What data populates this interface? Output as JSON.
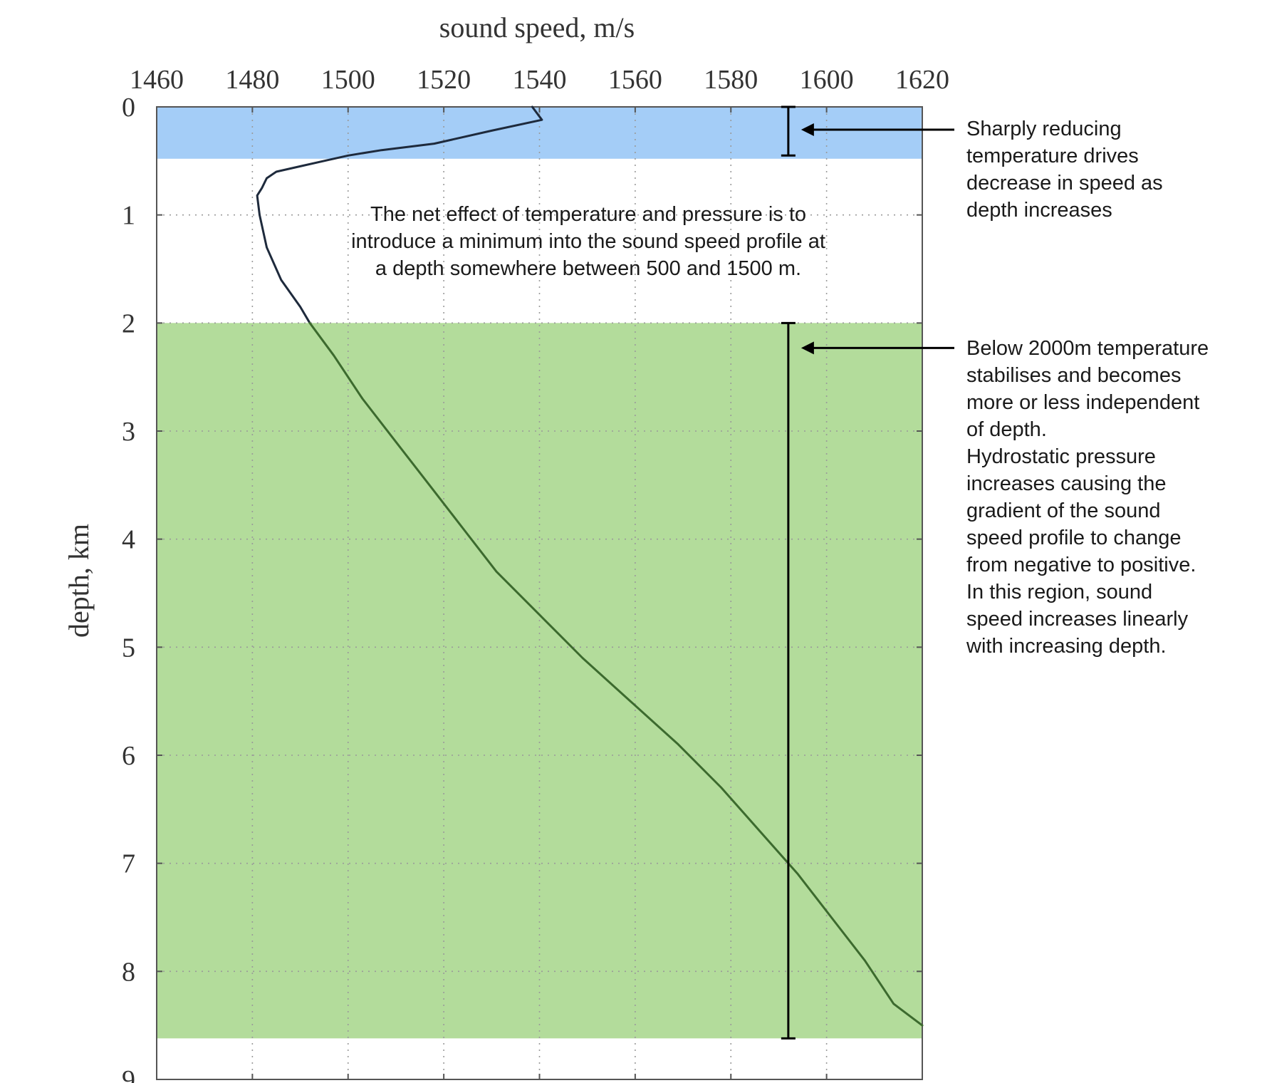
{
  "chart_data": {
    "type": "line",
    "title": "",
    "xlabel": "sound speed, m/s",
    "ylabel": "depth, km",
    "xaxis_position": "top",
    "yaxis_inverted": true,
    "xlim": [
      1460,
      1620
    ],
    "ylim": [
      0,
      9
    ],
    "xticks": [
      1460,
      1480,
      1500,
      1520,
      1540,
      1560,
      1580,
      1600,
      1620
    ],
    "yticks": [
      0,
      1,
      2,
      3,
      4,
      5,
      6,
      7,
      8,
      9
    ],
    "grid": "dotted",
    "regions": [
      {
        "name": "surface",
        "depth_range": [
          0,
          0.48
        ],
        "color": "#a4cdf7"
      },
      {
        "name": "deep",
        "depth_range": [
          2,
          8.62
        ],
        "color": "#b3dc9b"
      }
    ],
    "series": [
      {
        "color_above_2km": "#1e2a3c",
        "color_below_2km": "#3c6a2e",
        "points": [
          {
            "speed": 1538.5,
            "depth": 0.0
          },
          {
            "speed": 1540.5,
            "depth": 0.12
          },
          {
            "speed": 1530,
            "depth": 0.22
          },
          {
            "speed": 1518,
            "depth": 0.34
          },
          {
            "speed": 1507,
            "depth": 0.4
          },
          {
            "speed": 1500,
            "depth": 0.45
          },
          {
            "speed": 1495,
            "depth": 0.5
          },
          {
            "speed": 1490,
            "depth": 0.55
          },
          {
            "speed": 1485,
            "depth": 0.6
          },
          {
            "speed": 1483,
            "depth": 0.66
          },
          {
            "speed": 1482,
            "depth": 0.75
          },
          {
            "speed": 1481,
            "depth": 0.82
          },
          {
            "speed": 1481.5,
            "depth": 1.0
          },
          {
            "speed": 1483,
            "depth": 1.3
          },
          {
            "speed": 1486,
            "depth": 1.6
          },
          {
            "speed": 1490,
            "depth": 1.85
          },
          {
            "speed": 1492,
            "depth": 2.0
          },
          {
            "speed": 1497,
            "depth": 2.3
          },
          {
            "speed": 1503,
            "depth": 2.7
          },
          {
            "speed": 1510,
            "depth": 3.1
          },
          {
            "speed": 1517,
            "depth": 3.5
          },
          {
            "speed": 1524,
            "depth": 3.9
          },
          {
            "speed": 1531,
            "depth": 4.3
          },
          {
            "speed": 1540,
            "depth": 4.7
          },
          {
            "speed": 1549,
            "depth": 5.1
          },
          {
            "speed": 1559,
            "depth": 5.5
          },
          {
            "speed": 1569,
            "depth": 5.9
          },
          {
            "speed": 1578,
            "depth": 6.3
          },
          {
            "speed": 1586,
            "depth": 6.7
          },
          {
            "speed": 1594,
            "depth": 7.1
          },
          {
            "speed": 1601,
            "depth": 7.5
          },
          {
            "speed": 1608,
            "depth": 7.9
          },
          {
            "speed": 1614,
            "depth": 8.3
          },
          {
            "speed": 1620,
            "depth": 8.5
          }
        ]
      }
    ],
    "range_markers": [
      {
        "speed": 1592,
        "depth_range": [
          0.0,
          0.45
        ]
      },
      {
        "speed": 1592,
        "depth_range": [
          2.0,
          8.62
        ]
      }
    ],
    "annotations": {
      "center_note": [
        "The net effect of temperature and pressure is to",
        "introduce a minimum into the sound speed profile at",
        "a depth somewhere between 500 and 1500 m."
      ],
      "top_right": [
        "Sharply reducing",
        "temperature drives",
        "decrease in speed as",
        "depth increases"
      ],
      "bottom_right": [
        "Below 2000m temperature",
        "stabilises and becomes",
        "more or less independent",
        "of depth.",
        "",
        "Hydrostatic pressure",
        "increases causing the",
        "gradient of the sound",
        "speed profile to change",
        "from negative to positive.",
        "",
        "In this region, sound",
        "speed increases linearly",
        "with increasing depth."
      ]
    }
  }
}
